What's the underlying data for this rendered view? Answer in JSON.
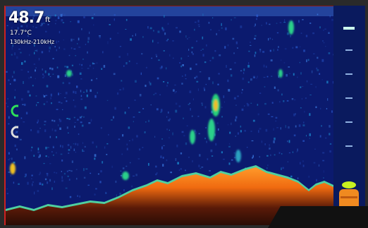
{
  "readouts": {
    "depth": "48.7",
    "depth_unit": "ft",
    "temperature": "17.7°C",
    "frequency": "130kHz-210kHz"
  },
  "icons": [
    "fish-hook-icon",
    "zoom-icon"
  ],
  "colors": {
    "water": "#0b1a6e",
    "bottom": "#f07a1a",
    "bottom_edge": "#4fd0a0",
    "frame_accent": "#cc2222"
  },
  "depth_scale": [
    "10",
    "20",
    "30",
    "40",
    "50"
  ]
}
